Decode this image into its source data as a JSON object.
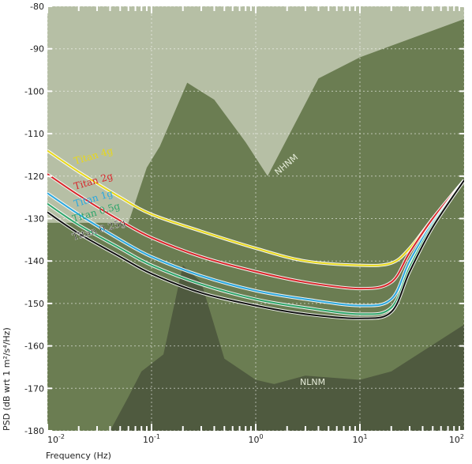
{
  "chart_data": {
    "type": "line",
    "title": "",
    "xlabel": "Frequency (Hz)",
    "ylabel": "PSD (dB wrt 1 m²/s⁴/Hz)",
    "xscale": "log",
    "xlim": [
      0.01,
      100
    ],
    "ylim": [
      -180,
      -80
    ],
    "x_ticks": [
      {
        "label_base": "10",
        "label_exp": "-2"
      },
      {
        "label_base": "10",
        "label_exp": "-1"
      },
      {
        "label_base": "10",
        "label_exp": "0"
      },
      {
        "label_base": "10",
        "label_exp": "1"
      },
      {
        "label_base": "10",
        "label_exp": "2"
      }
    ],
    "y_ticks": [
      "-80",
      "-90",
      "-100",
      "-110",
      "-120",
      "-130",
      "-140",
      "-150",
      "-160",
      "-170",
      "-180"
    ],
    "grid": true,
    "background_colors": {
      "plot": "#6b7d52",
      "high_noise_region": "#b6bfa5",
      "low_noise_region": "#4f5a3f",
      "mid_band": "#7d8c62"
    },
    "noise_models": [
      {
        "name": "NHNM",
        "x": [
          0.01,
          0.06,
          0.09,
          0.12,
          0.22,
          0.4,
          0.8,
          1.3,
          4,
          10,
          100
        ],
        "y": [
          -131,
          -131,
          -118,
          -113,
          -98,
          -102,
          -112,
          -120,
          -97,
          -92,
          -83
        ]
      },
      {
        "name": "NLNM",
        "x": [
          0.01,
          0.04,
          0.06,
          0.08,
          0.13,
          0.2,
          0.3,
          0.5,
          1,
          1.5,
          3,
          10,
          20,
          100
        ],
        "y": [
          -180,
          -180,
          -172,
          -166,
          -162,
          -141,
          -145,
          -163,
          -168,
          -169,
          -167,
          -168,
          -166,
          -155
        ]
      }
    ],
    "series": [
      {
        "name": "Titan 4g",
        "color": "#e8d81a",
        "x": [
          0.01,
          0.02,
          0.05,
          0.1,
          0.3,
          1,
          3,
          10,
          20,
          30,
          50,
          100
        ],
        "y": [
          -114,
          -119,
          -125,
          -129,
          -133,
          -137,
          -140,
          -141,
          -140.5,
          -137,
          -130,
          -121
        ]
      },
      {
        "name": "Titan 2g",
        "color": "#d8262b",
        "x": [
          0.01,
          0.02,
          0.05,
          0.1,
          0.3,
          1,
          3,
          10,
          20,
          30,
          50,
          100
        ],
        "y": [
          -119.5,
          -124.5,
          -130.5,
          -134.5,
          -139,
          -142.5,
          -145,
          -146.5,
          -145,
          -138,
          -130,
          -121
        ]
      },
      {
        "name": "Titan 1g",
        "color": "#2aa8df",
        "x": [
          0.01,
          0.02,
          0.05,
          0.1,
          0.3,
          1,
          3,
          10,
          20,
          30,
          50,
          100
        ],
        "y": [
          -124,
          -129,
          -135,
          -139,
          -143.5,
          -147,
          -149,
          -150.5,
          -149,
          -140,
          -131,
          -121
        ]
      },
      {
        "name": "Titan 0.5g",
        "color": "#2ea56a",
        "x": [
          0.01,
          0.02,
          0.05,
          0.1,
          0.3,
          1,
          3,
          10,
          20,
          30,
          50,
          100
        ],
        "y": [
          -126.5,
          -131.5,
          -137,
          -141,
          -145.5,
          -149,
          -151,
          -152.5,
          -151,
          -141.5,
          -131.5,
          -121
        ]
      },
      {
        "name": "Titan 0.25g",
        "color": "#111111",
        "x": [
          0.01,
          0.02,
          0.05,
          0.1,
          0.3,
          1,
          3,
          10,
          20,
          30,
          50,
          100
        ],
        "y": [
          -128.5,
          -133.5,
          -139,
          -143,
          -147.5,
          -150.5,
          -152.5,
          -153.5,
          -152,
          -142.5,
          -132,
          -121
        ]
      }
    ]
  }
}
